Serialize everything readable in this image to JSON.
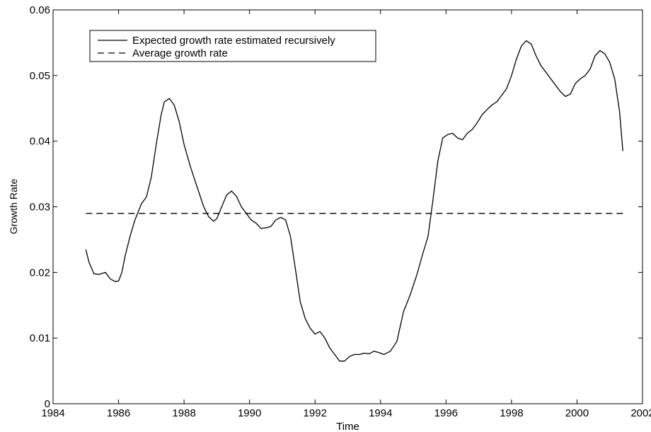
{
  "chart_data": {
    "type": "line",
    "title": "",
    "xlabel": "Time",
    "ylabel": "Growth Rate",
    "xlim": [
      1984,
      2002
    ],
    "ylim": [
      0,
      0.06
    ],
    "xticks": [
      1984,
      1986,
      1988,
      1990,
      1992,
      1994,
      1996,
      1998,
      2000,
      2002
    ],
    "yticks": [
      0,
      0.01,
      0.02,
      0.03,
      0.04,
      0.05,
      0.06
    ],
    "xtick_labels": [
      "1984",
      "1986",
      "1988",
      "1990",
      "1992",
      "1994",
      "1996",
      "1998",
      "2000",
      "2002"
    ],
    "ytick_labels": [
      "0",
      "0.01",
      "0.02",
      "0.03",
      "0.04",
      "0.05",
      "0.06"
    ],
    "grid": false,
    "legend_position": "top-left",
    "series": [
      {
        "name": "Expected growth rate estimated recursively",
        "style": "solid",
        "color": "#000000",
        "x": [
          1985.0,
          1985.1,
          1985.25,
          1985.4,
          1985.6,
          1985.75,
          1985.9,
          1986.0,
          1986.1,
          1986.2,
          1986.35,
          1986.5,
          1986.7,
          1986.85,
          1987.0,
          1987.15,
          1987.3,
          1987.4,
          1987.55,
          1987.7,
          1987.85,
          1988.0,
          1988.2,
          1988.4,
          1988.6,
          1988.75,
          1988.9,
          1989.0,
          1989.15,
          1989.3,
          1989.45,
          1989.6,
          1989.75,
          1989.9,
          1990.05,
          1990.2,
          1990.35,
          1990.5,
          1990.65,
          1990.8,
          1990.95,
          1991.1,
          1991.25,
          1991.4,
          1991.55,
          1991.7,
          1991.85,
          1992.0,
          1992.15,
          1992.3,
          1992.45,
          1992.6,
          1992.75,
          1992.9,
          1993.05,
          1993.2,
          1993.35,
          1993.5,
          1993.65,
          1993.8,
          1993.95,
          1994.1,
          1994.3,
          1994.5,
          1994.7,
          1994.9,
          1995.1,
          1995.3,
          1995.45,
          1995.6,
          1995.75,
          1995.9,
          1996.05,
          1996.2,
          1996.35,
          1996.5,
          1996.65,
          1996.8,
          1996.95,
          1997.1,
          1997.25,
          1997.4,
          1997.55,
          1997.7,
          1997.85,
          1998.0,
          1998.15,
          1998.3,
          1998.45,
          1998.6,
          1998.75,
          1998.9,
          1999.05,
          1999.2,
          1999.35,
          1999.5,
          1999.65,
          1999.8,
          1999.95,
          2000.1,
          2000.25,
          2000.4,
          2000.55,
          2000.7,
          2000.85,
          2001.0,
          2001.15,
          2001.3,
          2001.4
        ],
        "y": [
          0.0235,
          0.0215,
          0.0198,
          0.0197,
          0.02,
          0.019,
          0.0186,
          0.0187,
          0.02,
          0.0225,
          0.0255,
          0.028,
          0.0305,
          0.0315,
          0.0345,
          0.0395,
          0.044,
          0.046,
          0.0465,
          0.0455,
          0.043,
          0.0395,
          0.036,
          0.033,
          0.03,
          0.0285,
          0.0278,
          0.0282,
          0.03,
          0.0318,
          0.0324,
          0.0316,
          0.03,
          0.029,
          0.028,
          0.0275,
          0.0267,
          0.0268,
          0.027,
          0.028,
          0.0284,
          0.028,
          0.0255,
          0.0205,
          0.0155,
          0.013,
          0.0115,
          0.0106,
          0.011,
          0.01,
          0.0085,
          0.0075,
          0.0065,
          0.0065,
          0.0072,
          0.0075,
          0.0075,
          0.0077,
          0.0076,
          0.008,
          0.0078,
          0.0075,
          0.008,
          0.0095,
          0.014,
          0.0165,
          0.0195,
          0.023,
          0.0255,
          0.031,
          0.037,
          0.0405,
          0.041,
          0.0412,
          0.0405,
          0.0402,
          0.0412,
          0.0418,
          0.0428,
          0.044,
          0.0448,
          0.0455,
          0.046,
          0.047,
          0.048,
          0.05,
          0.0525,
          0.0545,
          0.0553,
          0.0548,
          0.053,
          0.0515,
          0.0505,
          0.0495,
          0.0485,
          0.0475,
          0.0468,
          0.0472,
          0.0488,
          0.0495,
          0.05,
          0.051,
          0.053,
          0.0538,
          0.0533,
          0.052,
          0.0495,
          0.0445,
          0.0385
        ]
      },
      {
        "name": "Average growth rate",
        "style": "dashed",
        "color": "#000000",
        "x": [
          1985.0,
          2001.4
        ],
        "y": [
          0.029,
          0.029
        ]
      }
    ]
  }
}
